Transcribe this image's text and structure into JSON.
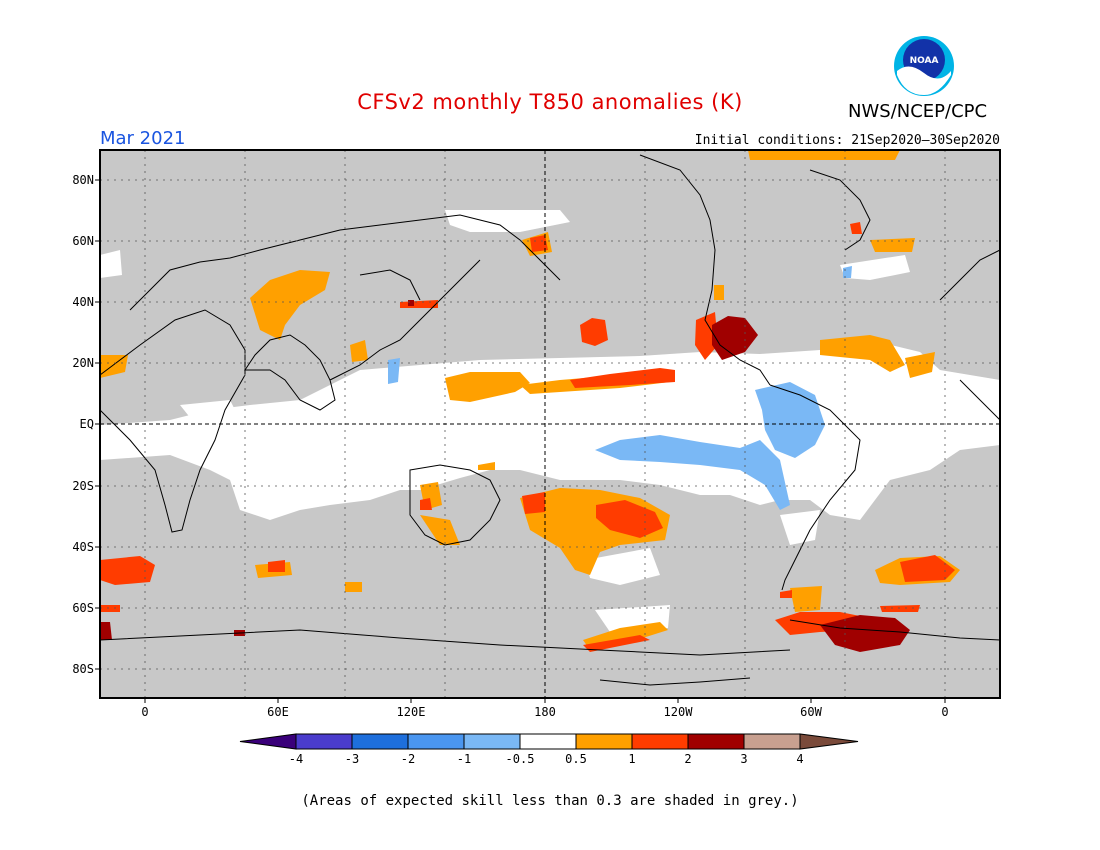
{
  "header": {
    "title": "CFSv2 monthly T850 anomalies (K)",
    "agency": "NWS/NCEP/CPC",
    "logo_text": "NOAA",
    "valid_month": "Mar 2021",
    "initial_conditions": "Initial conditions: 21Sep2020–30Sep2020"
  },
  "map": {
    "projection": "cylindrical equidistant",
    "lat_labels": [
      "80N",
      "60N",
      "40N",
      "20N",
      "EQ",
      "20S",
      "40S",
      "60S",
      "80S"
    ],
    "lon_labels": [
      "0",
      "60E",
      "120E",
      "180",
      "120W",
      "60W",
      "0"
    ],
    "background_color": "#c8c8c8",
    "grid": "dotted",
    "reference_lines": "dashed equator and 180 meridian"
  },
  "colorbar": {
    "labels": [
      "-4",
      "-3",
      "-2",
      "-1",
      "-0.5",
      "0.5",
      "1",
      "2",
      "3",
      "4"
    ],
    "colors": [
      "#3a007a",
      "#4a3ccc",
      "#1e6fdc",
      "#4a96f0",
      "#7ab8f5",
      "#ffffff",
      "#ffa000",
      "#ff3c00",
      "#a00000",
      "#c8a090",
      "#7a4a3a"
    ]
  },
  "footnote": "(Areas of expected skill less than 0.3 are shaded in grey.)",
  "colors": {
    "no_skill_grey": "#c8c8c8",
    "neutral_white": "#ffffff",
    "warm_0_5_1": "#ffa000",
    "warm_1_2": "#ff3c00",
    "warm_2_3": "#a00000",
    "cool_m1_m0_5": "#7ab8f5"
  }
}
